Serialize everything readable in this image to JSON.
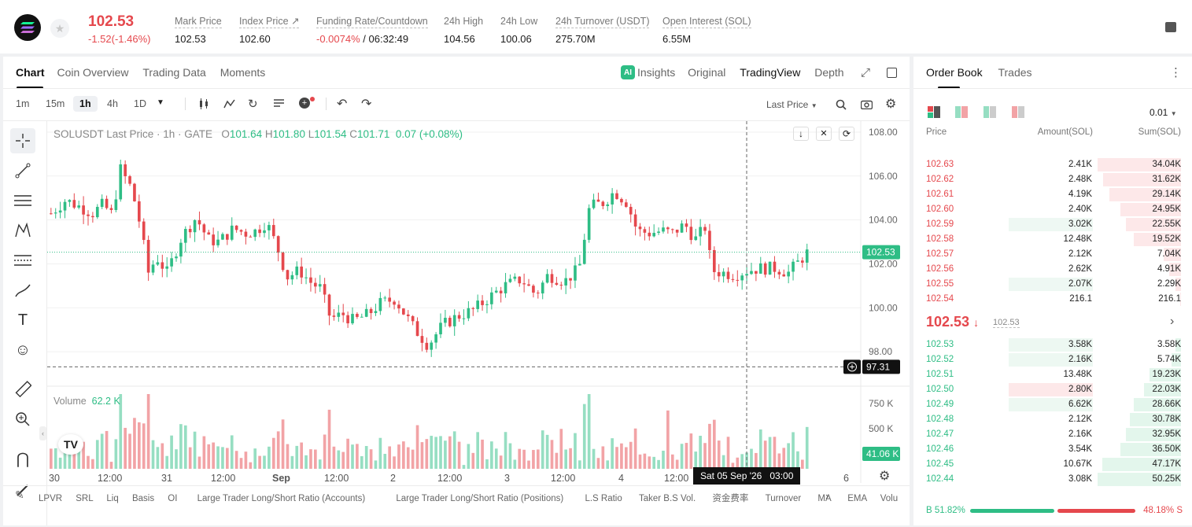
{
  "header": {
    "last_price": "102.53",
    "change": "-1.52(-1.46%)",
    "stats": [
      {
        "label": "Mark Price",
        "value": "102.53"
      },
      {
        "label": "Index Price ↗",
        "value": "102.60"
      },
      {
        "label": "Funding Rate/Countdown",
        "value": "-0.0074%",
        "value2": " / 06:32:49"
      },
      {
        "label": "24h High",
        "value": "104.56"
      },
      {
        "label": "24h Low",
        "value": "100.06"
      },
      {
        "label": "24h Turnover (USDT)",
        "value": "275.70M"
      },
      {
        "label": "Open Interest (SOL)",
        "value": "6.55M"
      }
    ]
  },
  "chart_tabs": [
    "Chart",
    "Coin Overview",
    "Trading Data",
    "Moments"
  ],
  "view_tabs": [
    "Insights",
    "Original",
    "TradingView",
    "Depth"
  ],
  "timeframes": [
    "1m",
    "15m",
    "1h",
    "4h",
    "1D"
  ],
  "price_source": "Last Price",
  "ohlc": {
    "symbol": "SOLUSDT Last Price · 1h · GATE",
    "o_label": "O",
    "o": "101.64",
    "h_label": "H",
    "h": "101.80",
    "l_label": "L",
    "l": "101.54",
    "c_label": "C",
    "c": "101.71",
    "chg": "0.07 (+0.08%)"
  },
  "volume": {
    "label": "Volume",
    "value": "62.2 K"
  },
  "chart_data": {
    "type": "candlestick",
    "y_ticks": [
      "108.00",
      "106.00",
      "104.00",
      "102.00",
      "100.00",
      "98.00"
    ],
    "y_range": [
      96.5,
      108.5
    ],
    "vol_ticks": [
      "750 K",
      "500 K",
      "250 K"
    ],
    "x_ticks": [
      "30",
      "12:00",
      "31",
      "12:00",
      "Sep",
      "12:00",
      "2",
      "12:00",
      "3",
      "12:00",
      "4",
      "12:00",
      "6"
    ],
    "current_price_tag": "102.53",
    "crosshair_price_tag": "97.31",
    "volume_tag": "41.06 K",
    "crosshair_time": "Sat 05 Sep '26   03:00",
    "colors": {
      "up": "#2ebd85",
      "down": "#e5484d"
    }
  },
  "indicators": [
    "LPVR",
    "SRL",
    "Liq",
    "Basis",
    "OI",
    "Large Trader Long/Short Ratio (Accounts)",
    "Large Trader Long/Short Ratio (Positions)",
    "L.S Ratio",
    "Taker B.S Vol.",
    "资金费率",
    "Turnover",
    "MA",
    "EMA",
    "Volu"
  ],
  "orderbook": {
    "tabs": [
      "Order Book",
      "Trades"
    ],
    "precision": "0.01",
    "headers": [
      "Price",
      "Amount(SOL)",
      "Sum(SOL)"
    ],
    "asks": [
      {
        "price": "102.63",
        "amount": "2.41K",
        "sum": "34.04K",
        "amt_frac": 0,
        "sum_frac": 1.0
      },
      {
        "price": "102.62",
        "amount": "2.48K",
        "sum": "31.62K",
        "amt_frac": 0,
        "sum_frac": 0.93
      },
      {
        "price": "102.61",
        "amount": "4.19K",
        "sum": "29.14K",
        "amt_frac": 0,
        "sum_frac": 0.86
      },
      {
        "price": "102.60",
        "amount": "2.40K",
        "sum": "24.95K",
        "amt_frac": 0,
        "sum_frac": 0.73
      },
      {
        "price": "102.59",
        "amount": "3.02K",
        "sum": "22.55K",
        "amt_frac": 0.28,
        "sum_frac": 0.66
      },
      {
        "price": "102.58",
        "amount": "12.48K",
        "sum": "19.52K",
        "amt_frac": 0,
        "sum_frac": 0.57
      },
      {
        "price": "102.57",
        "amount": "2.12K",
        "sum": "7.04K",
        "amt_frac": 0,
        "sum_frac": 0.21
      },
      {
        "price": "102.56",
        "amount": "2.62K",
        "sum": "4.91K",
        "amt_frac": 0,
        "sum_frac": 0.14
      },
      {
        "price": "102.55",
        "amount": "2.07K",
        "sum": "2.29K",
        "amt_frac": 0.28,
        "sum_frac": 0.07
      },
      {
        "price": "102.54",
        "amount": "216.1",
        "sum": "216.1",
        "amt_frac": 0,
        "sum_frac": 0.01
      }
    ],
    "mid_price": "102.53",
    "mid_mark": "102.53",
    "bids": [
      {
        "price": "102.53",
        "amount": "3.58K",
        "sum": "3.58K",
        "amt_frac": 0.28,
        "sum_frac": 0.07,
        "amt_red": false
      },
      {
        "price": "102.52",
        "amount": "2.16K",
        "sum": "5.74K",
        "amt_frac": 0.28,
        "sum_frac": 0.11,
        "amt_red": false
      },
      {
        "price": "102.51",
        "amount": "13.48K",
        "sum": "19.23K",
        "amt_frac": 0,
        "sum_frac": 0.38,
        "amt_red": false
      },
      {
        "price": "102.50",
        "amount": "2.80K",
        "sum": "22.03K",
        "amt_frac": 0.28,
        "sum_frac": 0.44,
        "amt_red": true
      },
      {
        "price": "102.49",
        "amount": "6.62K",
        "sum": "28.66K",
        "amt_frac": 0.28,
        "sum_frac": 0.57,
        "amt_red": false
      },
      {
        "price": "102.48",
        "amount": "2.12K",
        "sum": "30.78K",
        "amt_frac": 0,
        "sum_frac": 0.61,
        "amt_red": false
      },
      {
        "price": "102.47",
        "amount": "2.16K",
        "sum": "32.95K",
        "amt_frac": 0,
        "sum_frac": 0.66,
        "amt_red": false
      },
      {
        "price": "102.46",
        "amount": "3.54K",
        "sum": "36.50K",
        "amt_frac": 0,
        "sum_frac": 0.73,
        "amt_red": false
      },
      {
        "price": "102.45",
        "amount": "10.67K",
        "sum": "47.17K",
        "amt_frac": 0,
        "sum_frac": 0.94,
        "amt_red": false
      },
      {
        "price": "102.44",
        "amount": "3.08K",
        "sum": "50.25K",
        "amt_frac": 0,
        "sum_frac": 1.0,
        "amt_red": false
      }
    ],
    "buy_label": "B",
    "buy_pct": "51.82%",
    "sell_pct": "48.18%",
    "sell_label": "S",
    "buy_ratio": 0.5182
  }
}
